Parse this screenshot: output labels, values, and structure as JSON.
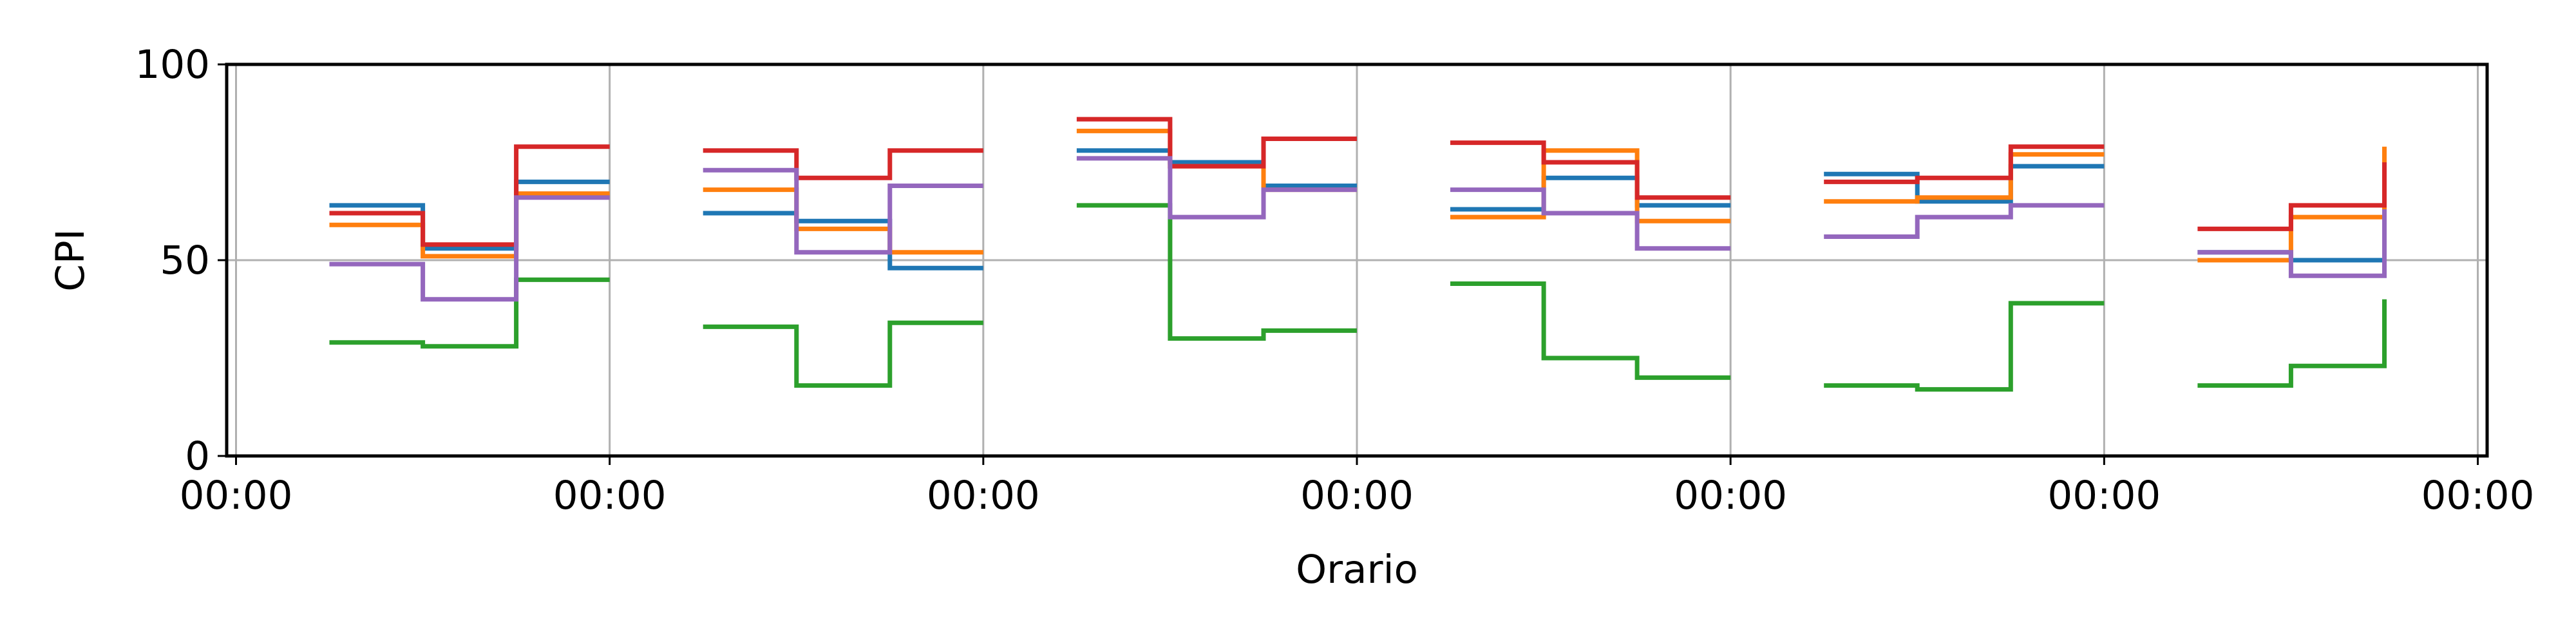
{
  "chart_data": {
    "type": "line",
    "step": "post",
    "xlabel": "Orario",
    "ylabel": "CPI",
    "ylim": [
      0,
      100
    ],
    "xlim": [
      -0.05,
      12.05
    ],
    "grid": true,
    "y_ticks": [
      0,
      50,
      100
    ],
    "y_tick_labels": [
      "0",
      "50",
      "100"
    ],
    "x_ticks": [
      0,
      2,
      4,
      6,
      8,
      10,
      12
    ],
    "x_tick_labels": [
      "00:00",
      "00:00",
      "00:00",
      "00:00",
      "00:00",
      "00:00",
      "00:00"
    ],
    "x_points": [
      0.5,
      1.0,
      1.5,
      2.0,
      2.5,
      3.0,
      3.5,
      4.0,
      4.5,
      5.0,
      5.5,
      6.0,
      6.5,
      7.0,
      7.5,
      8.0,
      8.5,
      9.0,
      9.5,
      10.0,
      10.5,
      11.0,
      11.5,
      11.5
    ],
    "series": [
      {
        "color": "#1f77b4",
        "values": [
          64,
          53,
          70,
          70,
          62,
          60,
          48,
          48,
          78,
          75,
          69,
          69,
          63,
          71,
          64,
          64,
          72,
          65,
          74,
          74,
          52,
          50,
          50,
          62
        ]
      },
      {
        "color": "#ff7f0e",
        "values": [
          59,
          51,
          67,
          67,
          68,
          58,
          52,
          52,
          83,
          74,
          68,
          68,
          61,
          78,
          60,
          60,
          65,
          66,
          77,
          77,
          50,
          61,
          61,
          79
        ]
      },
      {
        "color": "#2ca02c",
        "values": [
          29,
          28,
          45,
          45,
          33,
          18,
          34,
          34,
          64,
          30,
          32,
          32,
          44,
          25,
          20,
          20,
          18,
          17,
          39,
          39,
          18,
          23,
          23,
          40
        ]
      },
      {
        "color": "#d62728",
        "values": [
          62,
          54,
          79,
          79,
          78,
          71,
          78,
          78,
          86,
          74,
          81,
          81,
          80,
          75,
          66,
          66,
          70,
          71,
          79,
          79,
          58,
          64,
          64,
          75
        ]
      },
      {
        "color": "#9467bd",
        "values": [
          49,
          40,
          66,
          66,
          73,
          52,
          69,
          69,
          76,
          61,
          68,
          68,
          68,
          62,
          53,
          53,
          56,
          61,
          64,
          64,
          52,
          46,
          46,
          63
        ]
      }
    ]
  }
}
